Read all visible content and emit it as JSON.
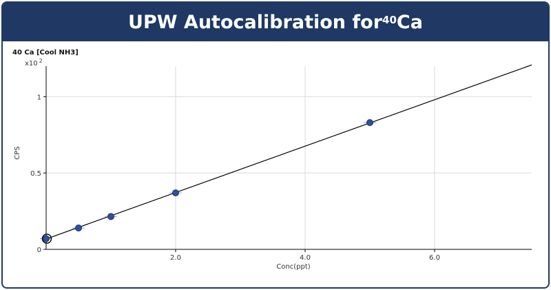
{
  "header": {
    "title_prefix": "UPW Autocalibration for ",
    "title_isotope": "40",
    "title_element": "Ca"
  },
  "colors": {
    "banner": "#1f3864",
    "marker": "#2f4fa0",
    "line": "#000000",
    "grid": "#d9d9d9"
  },
  "chart_data": {
    "type": "scatter",
    "subtitle": "40 Ca [Cool NH3]",
    "multiplier_base": "x10",
    "multiplier_exp": "2",
    "xlabel": "Conc(ppt)",
    "ylabel": "CPS",
    "xlim": [
      0,
      7.5
    ],
    "ylim": [
      0,
      1.2
    ],
    "x_ticks": [
      {
        "value": 2,
        "label": "2.0"
      },
      {
        "value": 4,
        "label": "4.0"
      },
      {
        "value": 6,
        "label": "6.0"
      }
    ],
    "y_ticks": [
      {
        "value": 0,
        "label": "0"
      },
      {
        "value": 0.5,
        "label": "0.5"
      },
      {
        "value": 1,
        "label": "1"
      }
    ],
    "grid": true,
    "points": [
      {
        "x": 0,
        "y": 0.07
      },
      {
        "x": 0.5,
        "y": 0.14
      },
      {
        "x": 1,
        "y": 0.215
      },
      {
        "x": 2,
        "y": 0.37
      },
      {
        "x": 5,
        "y": 0.83
      }
    ],
    "blank_point": {
      "x": 0,
      "y": 0.07
    },
    "fit_line": {
      "slope": 0.152,
      "intercept": 0.068
    }
  }
}
